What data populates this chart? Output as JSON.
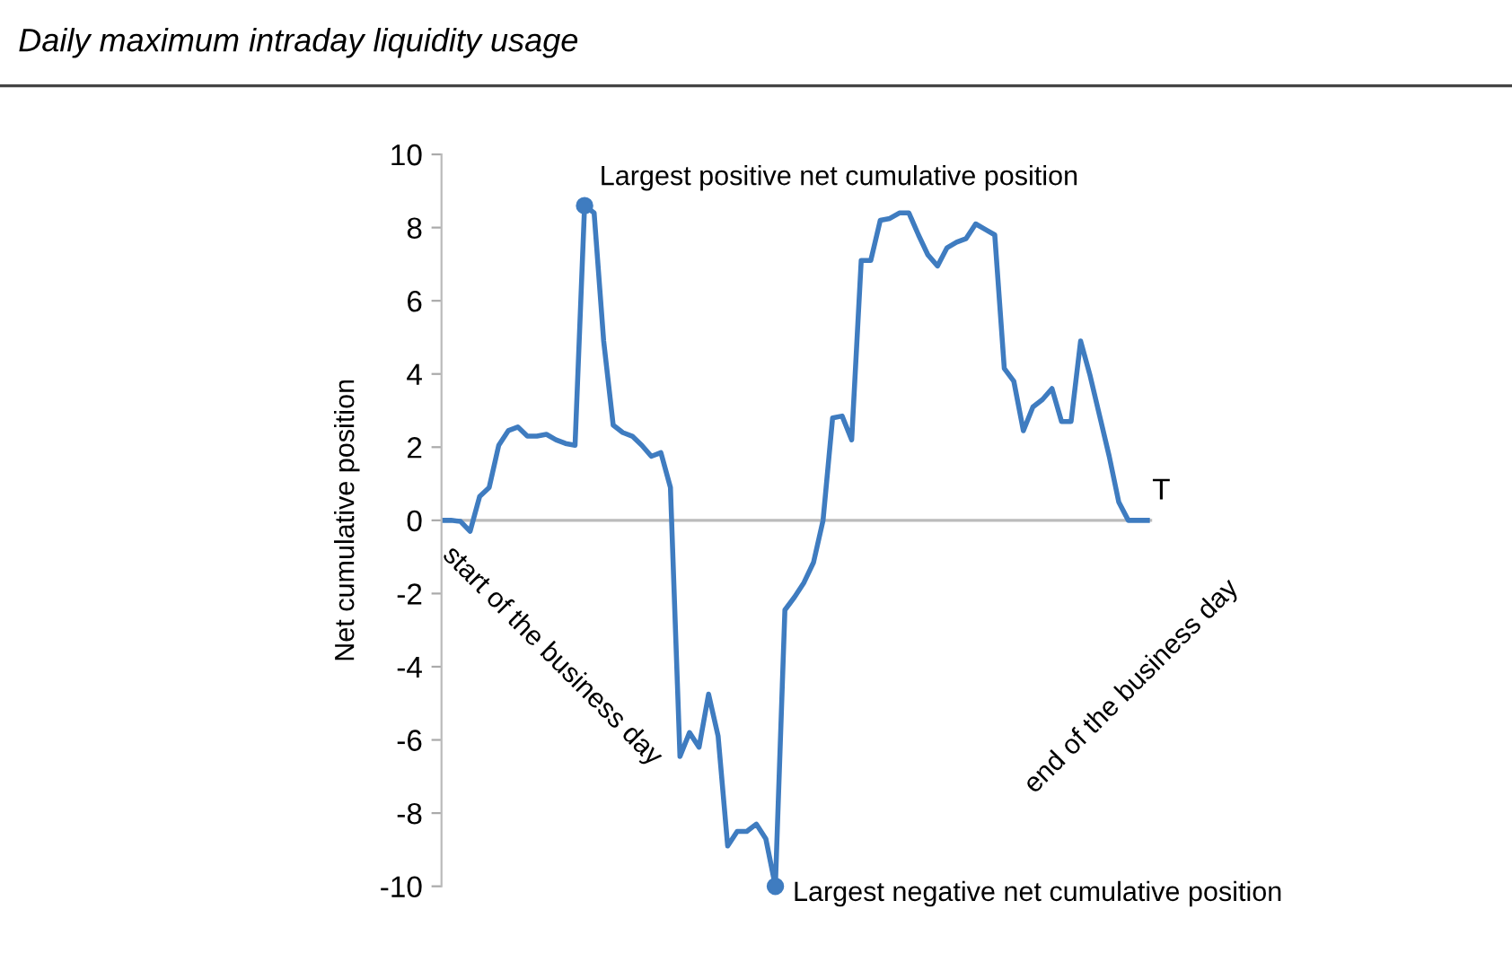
{
  "chart_data": {
    "type": "line",
    "title": "Daily maximum intraday liquidity usage",
    "ylabel": "Net cumulative position",
    "xlabel": "T",
    "categories": [
      null,
      null,
      null,
      null,
      null,
      null,
      null,
      null,
      null,
      null,
      null,
      null,
      null,
      null,
      null,
      null,
      null,
      null,
      null,
      null,
      null,
      null,
      null,
      null,
      null,
      null,
      null,
      null,
      null,
      null,
      null,
      null,
      null,
      null,
      null,
      null,
      null,
      null,
      null,
      null,
      null,
      null,
      null,
      null,
      null,
      null,
      null,
      null,
      null,
      null,
      null,
      null,
      null,
      null,
      null,
      null,
      null,
      null,
      null,
      null,
      null,
      null,
      null,
      null,
      null,
      null,
      null,
      null,
      null,
      null,
      null,
      null,
      null,
      null,
      null
    ],
    "series": [
      {
        "color": "#3f7cc0",
        "values": [
          0,
          0,
          -0.03,
          -0.3,
          0.65,
          0.9,
          2.05,
          2.45,
          2.55,
          2.3,
          2.3,
          2.35,
          2.2,
          2.1,
          2.05,
          8.6,
          8.4,
          4.9,
          2.6,
          2.4,
          2.3,
          2.05,
          1.75,
          1.85,
          0.9,
          -6.45,
          -5.8,
          -6.2,
          -4.75,
          -5.9,
          -8.9,
          -8.5,
          -8.5,
          -8.3,
          -8.7,
          -10,
          -2.45,
          -2.1,
          -1.7,
          -1.15,
          0,
          2.8,
          2.85,
          2.2,
          7.1,
          7.1,
          8.2,
          8.25,
          8.4,
          8.4,
          7.8,
          7.25,
          6.95,
          7.45,
          7.6,
          7.7,
          8.1,
          7.95,
          7.8,
          4.15,
          3.8,
          2.45,
          3.1,
          3.3,
          3.6,
          2.7,
          2.7,
          4.9,
          3.95,
          2.85,
          1.75,
          0.5,
          0,
          0,
          0
        ]
      }
    ],
    "ylim": [
      -10,
      10
    ],
    "yticks": [
      -10,
      -8,
      -6,
      -4,
      -2,
      0,
      2,
      4,
      6,
      8,
      10
    ],
    "ref_lines": [
      {
        "axis": "y",
        "value": 0,
        "color": "#bbbbbb"
      }
    ],
    "tick_labels": "y",
    "grid": false,
    "legend": false,
    "marker": "none",
    "line_style": "solid",
    "annotations": [
      "Largest positive net cumulative position",
      "Largest negative net cumulative position",
      "start of the business day",
      "end of the business day"
    ]
  }
}
